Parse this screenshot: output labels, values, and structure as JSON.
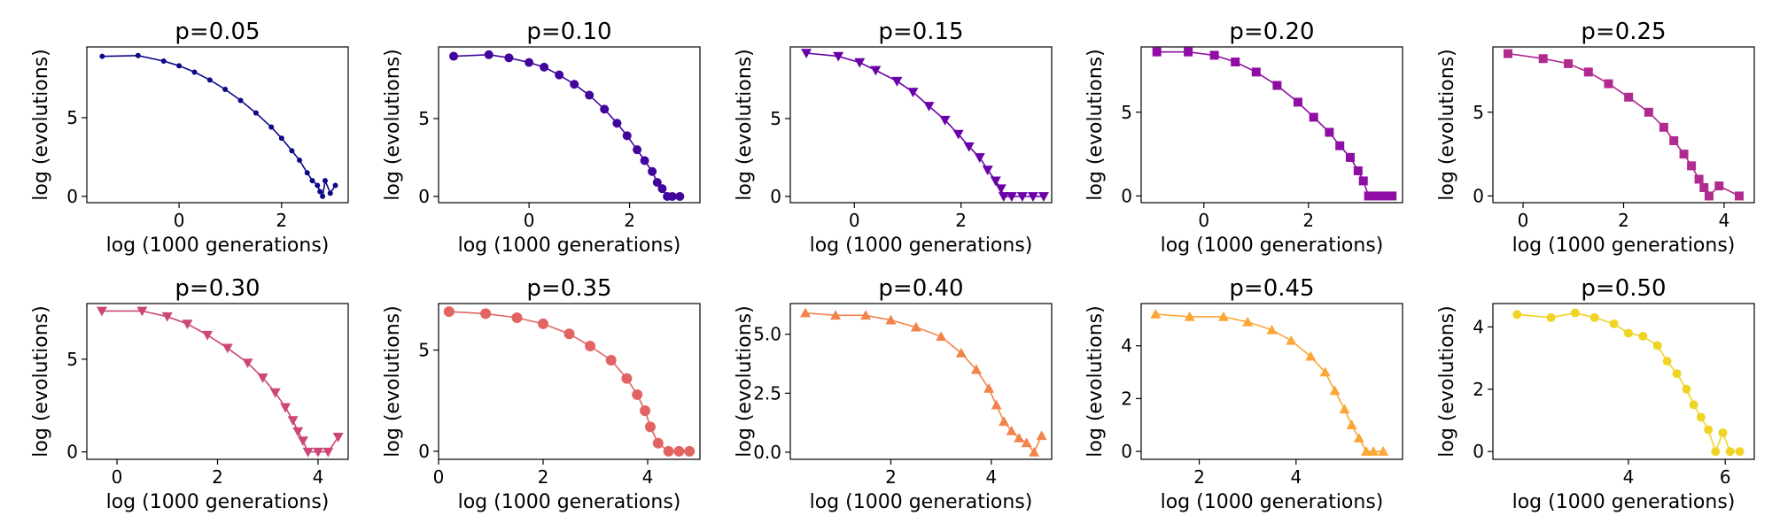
{
  "chart_data": [
    {
      "type": "line",
      "title": "p=0.05",
      "xlabel": "log (1000 generations)",
      "ylabel": "log (evolutions)",
      "xlim": [
        -1.8,
        3.3
      ],
      "ylim": [
        -0.4,
        9.5
      ],
      "xticks": [
        0,
        2
      ],
      "xtick_labels": [
        "0",
        "2"
      ],
      "yticks": [
        0,
        5
      ],
      "ytick_labels": [
        "0",
        "5"
      ],
      "color": "#0d0887",
      "marker": "circle",
      "marker_size": 3,
      "series": [
        {
          "x": [
            -1.5,
            -0.8,
            -0.3,
            0.0,
            0.3,
            0.6,
            0.9,
            1.2,
            1.5,
            1.8,
            2.0,
            2.2,
            2.35,
            2.5,
            2.6,
            2.7,
            2.75,
            2.8,
            2.85,
            2.95,
            3.05
          ],
          "y": [
            8.9,
            8.95,
            8.6,
            8.3,
            7.9,
            7.4,
            6.8,
            6.1,
            5.3,
            4.4,
            3.7,
            2.9,
            2.3,
            1.5,
            1.0,
            0.7,
            0.3,
            0.0,
            1.0,
            0.2,
            0.7
          ]
        }
      ]
    },
    {
      "type": "line",
      "title": "p=0.10",
      "xlabel": "log (1000 generations)",
      "ylabel": "log (evolutions)",
      "xlim": [
        -1.8,
        3.4
      ],
      "ylim": [
        -0.4,
        9.6
      ],
      "xticks": [
        0,
        2
      ],
      "xtick_labels": [
        "0",
        "2"
      ],
      "yticks": [
        0,
        5
      ],
      "ytick_labels": [
        "0",
        "5"
      ],
      "color": "#41049d",
      "marker": "circle",
      "marker_size": 5,
      "series": [
        {
          "x": [
            -1.5,
            -0.8,
            -0.4,
            0.0,
            0.3,
            0.6,
            0.9,
            1.2,
            1.5,
            1.75,
            1.95,
            2.15,
            2.3,
            2.45,
            2.55,
            2.65,
            2.75,
            2.85,
            3.0
          ],
          "y": [
            9.0,
            9.1,
            8.9,
            8.6,
            8.3,
            7.8,
            7.2,
            6.5,
            5.6,
            4.7,
            3.9,
            3.0,
            2.3,
            1.6,
            0.9,
            0.5,
            0.0,
            0.0,
            0.0
          ]
        }
      ]
    },
    {
      "type": "line",
      "title": "p=0.15",
      "xlabel": "log (1000 generations)",
      "ylabel": "log (evolutions)",
      "xlim": [
        -1.2,
        3.7
      ],
      "ylim": [
        -0.4,
        9.6
      ],
      "xticks": [
        0,
        2
      ],
      "xtick_labels": [
        "0",
        "2"
      ],
      "yticks": [
        0,
        5
      ],
      "ytick_labels": [
        "0",
        "5"
      ],
      "color": "#6a00a8",
      "marker": "triangle-down",
      "marker_size": 6,
      "series": [
        {
          "x": [
            -0.9,
            -0.3,
            0.1,
            0.4,
            0.8,
            1.1,
            1.4,
            1.7,
            1.95,
            2.15,
            2.35,
            2.5,
            2.65,
            2.75,
            2.8,
            2.95,
            3.15,
            3.35,
            3.55
          ],
          "y": [
            9.2,
            9.0,
            8.6,
            8.1,
            7.4,
            6.7,
            5.8,
            4.9,
            4.0,
            3.2,
            2.5,
            1.7,
            1.0,
            0.5,
            0.0,
            0.0,
            0.0,
            0.0,
            0.0
          ]
        }
      ]
    },
    {
      "type": "line",
      "title": "p=0.20",
      "xlabel": "log (1000 generations)",
      "ylabel": "log (evolutions)",
      "xlim": [
        -1.2,
        3.8
      ],
      "ylim": [
        -0.4,
        8.9
      ],
      "xticks": [
        0,
        2
      ],
      "xtick_labels": [
        "0",
        "2"
      ],
      "yticks": [
        0,
        5
      ],
      "ytick_labels": [
        "0",
        "5"
      ],
      "color": "#8f0da4",
      "marker": "square",
      "marker_size": 5,
      "series": [
        {
          "x": [
            -0.9,
            -0.3,
            0.2,
            0.6,
            1.0,
            1.4,
            1.8,
            2.1,
            2.4,
            2.6,
            2.8,
            2.95,
            3.05,
            3.15,
            3.3,
            3.45,
            3.6
          ],
          "y": [
            8.6,
            8.6,
            8.4,
            8.0,
            7.4,
            6.6,
            5.6,
            4.7,
            3.8,
            3.0,
            2.3,
            1.5,
            0.9,
            0.0,
            0.0,
            0.0,
            0.0
          ]
        }
      ]
    },
    {
      "type": "line",
      "title": "p=0.25",
      "xlabel": "log (1000 generations)",
      "ylabel": "log (evolutions)",
      "xlim": [
        -0.6,
        4.6
      ],
      "ylim": [
        -0.4,
        8.9
      ],
      "xticks": [
        0,
        2,
        4
      ],
      "xtick_labels": [
        "0",
        "2",
        "4"
      ],
      "yticks": [
        0,
        5
      ],
      "ytick_labels": [
        "0",
        "5"
      ],
      "color": "#b12a90",
      "marker": "square",
      "marker_size": 5,
      "series": [
        {
          "x": [
            -0.3,
            0.4,
            0.9,
            1.3,
            1.7,
            2.1,
            2.5,
            2.8,
            3.0,
            3.2,
            3.35,
            3.5,
            3.6,
            3.7,
            3.9,
            4.3
          ],
          "y": [
            8.5,
            8.2,
            7.9,
            7.4,
            6.7,
            5.9,
            5.0,
            4.1,
            3.3,
            2.5,
            1.8,
            1.0,
            0.5,
            0.0,
            0.6,
            0.0
          ]
        }
      ]
    },
    {
      "type": "line",
      "title": "p=0.30",
      "xlabel": "log (1000 generations)",
      "ylabel": "log (evolutions)",
      "xlim": [
        -0.6,
        4.6
      ],
      "ylim": [
        -0.4,
        8.0
      ],
      "xticks": [
        0,
        2,
        4
      ],
      "xtick_labels": [
        "0",
        "2",
        "4"
      ],
      "yticks": [
        0,
        5
      ],
      "ytick_labels": [
        "0",
        "5"
      ],
      "color": "#cc4778",
      "marker": "triangle-down",
      "marker_size": 6,
      "series": [
        {
          "x": [
            -0.3,
            0.5,
            1.0,
            1.4,
            1.8,
            2.2,
            2.6,
            2.9,
            3.15,
            3.35,
            3.5,
            3.6,
            3.7,
            3.8,
            4.0,
            4.2,
            4.4
          ],
          "y": [
            7.6,
            7.6,
            7.3,
            6.9,
            6.3,
            5.6,
            4.8,
            4.0,
            3.2,
            2.4,
            1.7,
            1.1,
            0.6,
            0.0,
            0.0,
            0.0,
            0.8
          ]
        }
      ]
    },
    {
      "type": "line",
      "title": "p=0.35",
      "xlabel": "log (1000 generations)",
      "ylabel": "log (evolutions)",
      "xlim": [
        0,
        5.0
      ],
      "ylim": [
        -0.4,
        7.3
      ],
      "xticks": [
        0,
        2,
        4
      ],
      "xtick_labels": [
        "0",
        "2",
        "4"
      ],
      "yticks": [
        0,
        5
      ],
      "ytick_labels": [
        "0",
        "5"
      ],
      "color": "#e16462",
      "marker": "circle",
      "marker_size": 6,
      "series": [
        {
          "x": [
            0.2,
            0.9,
            1.5,
            2.0,
            2.5,
            2.9,
            3.3,
            3.6,
            3.8,
            3.95,
            4.05,
            4.2,
            4.4,
            4.6,
            4.8
          ],
          "y": [
            6.9,
            6.8,
            6.6,
            6.3,
            5.8,
            5.2,
            4.5,
            3.6,
            2.8,
            2.0,
            1.2,
            0.4,
            0.0,
            0.0,
            0.0
          ]
        }
      ]
    },
    {
      "type": "line",
      "title": "p=0.40",
      "xlabel": "log (1000 generations)",
      "ylabel": "log (evolutions)",
      "xlim": [
        0,
        5.2
      ],
      "ylim": [
        -0.3,
        6.3
      ],
      "xticks": [
        2,
        4
      ],
      "xtick_labels": [
        "2",
        "4"
      ],
      "yticks": [
        0.0,
        2.5,
        5.0
      ],
      "ytick_labels": [
        "0.0",
        "2.5",
        "5.0"
      ],
      "color": "#f2844b",
      "marker": "triangle-up",
      "marker_size": 6,
      "series": [
        {
          "x": [
            0.3,
            0.9,
            1.5,
            2.0,
            2.5,
            3.0,
            3.4,
            3.7,
            3.95,
            4.1,
            4.25,
            4.4,
            4.55,
            4.7,
            4.85,
            5.0
          ],
          "y": [
            5.9,
            5.8,
            5.8,
            5.6,
            5.3,
            4.9,
            4.2,
            3.5,
            2.7,
            2.0,
            1.3,
            0.9,
            0.6,
            0.4,
            0.0,
            0.7
          ]
        }
      ]
    },
    {
      "type": "line",
      "title": "p=0.45",
      "xlabel": "log (1000 generations)",
      "ylabel": "log (evolutions)",
      "xlim": [
        0.8,
        6.2
      ],
      "ylim": [
        -0.3,
        5.6
      ],
      "xticks": [
        2,
        4
      ],
      "xtick_labels": [
        "2",
        "4"
      ],
      "yticks": [
        0,
        2,
        4
      ],
      "ytick_labels": [
        "0",
        "2",
        "4"
      ],
      "color": "#fca636",
      "marker": "triangle-up",
      "marker_size": 6,
      "series": [
        {
          "x": [
            1.1,
            1.8,
            2.5,
            3.0,
            3.5,
            3.9,
            4.3,
            4.6,
            4.8,
            5.0,
            5.15,
            5.3,
            5.45,
            5.6,
            5.8
          ],
          "y": [
            5.2,
            5.1,
            5.1,
            4.9,
            4.6,
            4.2,
            3.6,
            3.0,
            2.3,
            1.6,
            1.0,
            0.5,
            0.0,
            0.0,
            0.0
          ]
        }
      ]
    },
    {
      "type": "line",
      "title": "p=0.50",
      "xlabel": "log (1000 generations)",
      "ylabel": "log (evolutions)",
      "xlim": [
        1.2,
        6.6
      ],
      "ylim": [
        -0.25,
        4.75
      ],
      "xticks": [
        4,
        6
      ],
      "xtick_labels": [
        "4",
        "6"
      ],
      "yticks": [
        0,
        2,
        4
      ],
      "ytick_labels": [
        "0",
        "2",
        "4"
      ],
      "color": "#f0d425",
      "marker": "circle",
      "marker_size": 5,
      "series": [
        {
          "x": [
            1.7,
            2.4,
            2.9,
            3.3,
            3.7,
            4.0,
            4.3,
            4.6,
            4.8,
            5.0,
            5.2,
            5.35,
            5.5,
            5.65,
            5.8,
            5.95,
            6.1,
            6.3
          ],
          "y": [
            4.4,
            4.3,
            4.45,
            4.3,
            4.1,
            3.8,
            3.7,
            3.4,
            2.9,
            2.5,
            2.0,
            1.5,
            1.1,
            0.7,
            0.0,
            0.6,
            0.0,
            0.0
          ]
        }
      ]
    }
  ]
}
